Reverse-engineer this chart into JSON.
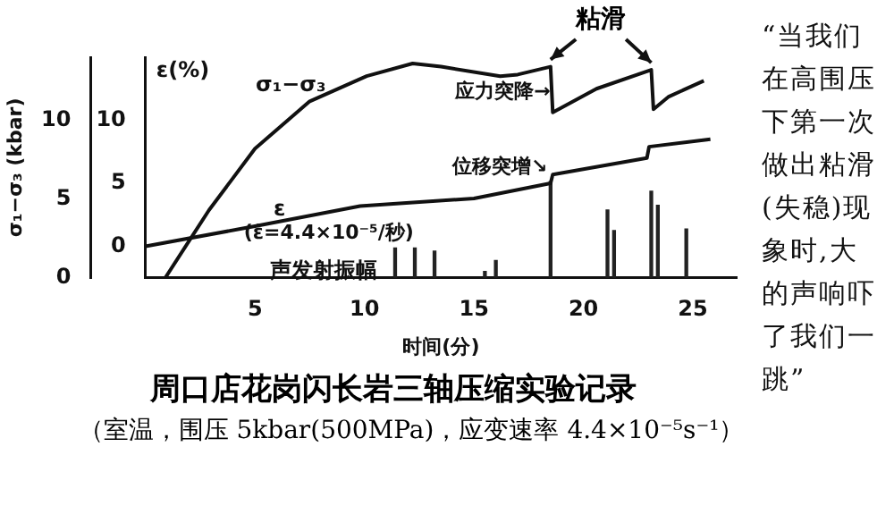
{
  "chart_data": {
    "type": "line",
    "title": "周口店花岗闪长岩三轴压缩实验记录",
    "subtitle": "（室温，围压 5kbar(500MPa)，应变速率 4.4×10⁻⁵s⁻¹）",
    "xlabel": "时间(分)",
    "ylabel": "σ₁−σ₃ (kbar)",
    "y2label": "ε(%)",
    "xlim": [
      0,
      27
    ],
    "xticks": [
      5,
      10,
      15,
      20,
      25
    ],
    "ylim": [
      0,
      14
    ],
    "yticks": [
      0,
      5,
      10
    ],
    "y2lim": [
      -2.5,
      15
    ],
    "y2ticks": [
      0,
      5,
      10
    ],
    "grid": false,
    "legend": false,
    "series": [
      {
        "name": "σ₁−σ₃",
        "color": "#111111",
        "x": [
          0.9,
          2.9,
          5.0,
          7.5,
          10.1,
          12.2,
          13.5,
          16.2,
          17.0,
          18.5,
          18.6,
          20.6,
          23.1,
          23.2,
          23.9,
          25.5
        ],
        "values": [
          0,
          4.3,
          8.2,
          11.2,
          12.8,
          13.6,
          13.4,
          12.8,
          12.9,
          13.4,
          10.5,
          12.0,
          13.2,
          10.7,
          11.5,
          12.5
        ]
      },
      {
        "name": "ε",
        "axis": "y2",
        "color": "#111111",
        "x": [
          0,
          5,
          9.8,
          15,
          18.5,
          18.6,
          22.9,
          23.0,
          25.8
        ],
        "values": [
          0,
          1.6,
          3.2,
          3.8,
          5.0,
          5.7,
          7.0,
          7.9,
          8.5
        ]
      },
      {
        "name": "声发射振幅",
        "type": "bar",
        "color": "#222222",
        "x": [
          11.4,
          12.3,
          13.2,
          15.5,
          16.0,
          18.5,
          21.1,
          21.4,
          23.1,
          23.4,
          24.7
        ],
        "values": [
          1.9,
          1.9,
          1.7,
          0.4,
          1.1,
          6.1,
          4.3,
          3.0,
          5.5,
          4.6,
          3.1
        ]
      }
    ],
    "annotations": [
      "粘滑",
      "“当我们在高围压下第一次做出粘滑(失稳)现象时,大的声响吓了我们一跳”",
      "(ε̇=4.4×10⁻⁵/秒)",
      "应力突降→",
      "位移突增↘"
    ]
  }
}
